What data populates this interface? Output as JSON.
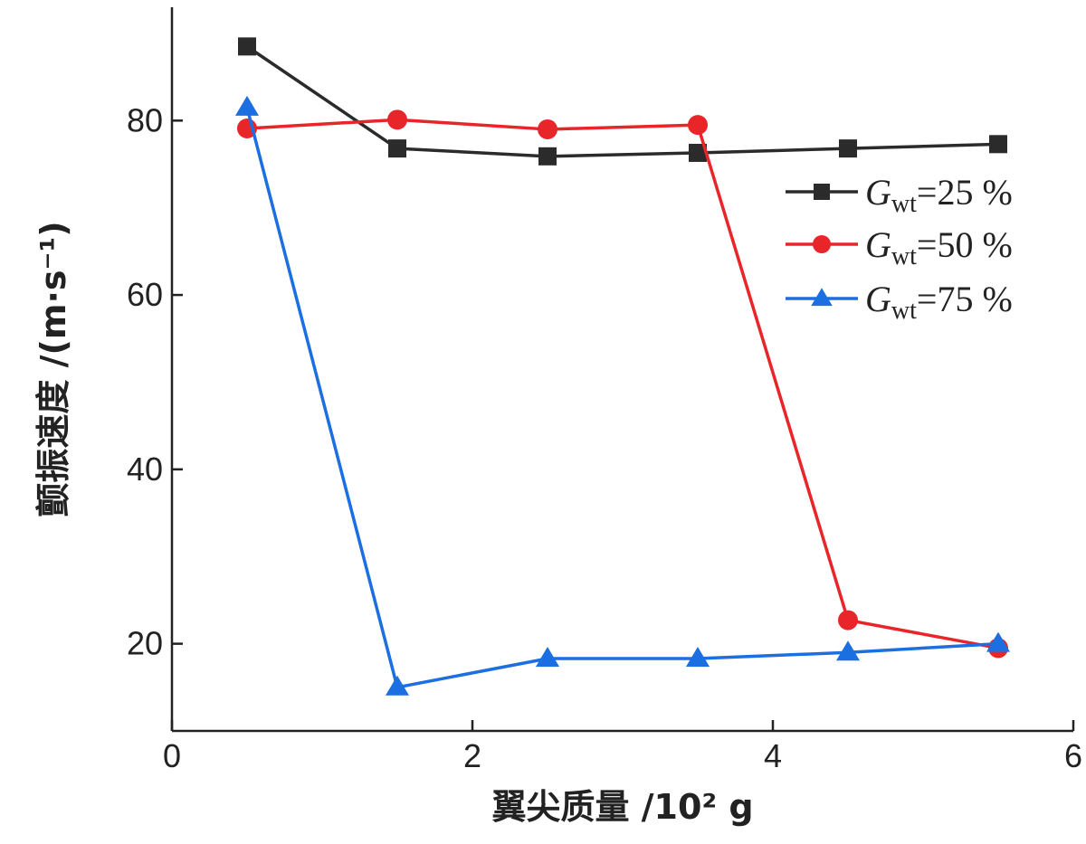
{
  "chart_data": {
    "type": "line",
    "title": "",
    "xlabel": "翼尖质量 /10² g",
    "ylabel": "颤振速度 /(m·s⁻¹)",
    "xlim": [
      0,
      6
    ],
    "ylim": [
      10,
      93
    ],
    "x_ticks": [
      "0",
      "2",
      "4",
      "6"
    ],
    "y_ticks": [
      "20",
      "40",
      "60",
      "80"
    ],
    "grid": false,
    "legend_position": "right",
    "x": [
      0.5,
      1.5,
      2.5,
      3.5,
      4.5,
      5.5
    ],
    "series": [
      {
        "name": "Gwt=25 %",
        "marker": "square",
        "color": "#2b2b2b",
        "values": [
          88.5,
          76.8,
          75.9,
          76.3,
          76.8,
          77.3
        ]
      },
      {
        "name": "Gwt=50 %",
        "marker": "circle",
        "color": "#e8262a",
        "values": [
          79.1,
          80.1,
          79.0,
          79.5,
          22.7,
          19.5
        ]
      },
      {
        "name": "Gwt=75 %",
        "marker": "triangle",
        "color": "#1c6fe0",
        "values": [
          81.5,
          15.0,
          18.3,
          18.3,
          19.0,
          20.0
        ]
      }
    ]
  }
}
